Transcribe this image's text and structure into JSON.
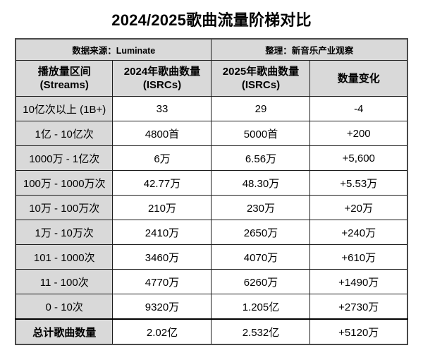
{
  "title": "2024/2025歌曲流量阶梯对比",
  "meta": {
    "source_label": "数据来源：Luminate",
    "compiler_label": "整理：新音乐产业观察"
  },
  "colors": {
    "header_bg": "#d9d9d9",
    "inner_border": "#1c1c1c",
    "outer_border": "#4a4a4a",
    "text": "#000000",
    "page_bg": "#ffffff"
  },
  "chart_data": {
    "type": "table",
    "title": "2024/2025歌曲流量阶梯对比",
    "columns": [
      "播放量区间\n(Streams)",
      "2024年歌曲数量\n(ISRCs)",
      "2025年歌曲数量\n(ISRCs)",
      "数量变化"
    ],
    "categories": [
      "10亿次以上 (1B+)",
      "1亿 - 10亿次",
      "1000万 - 1亿次",
      "100万 - 1000万次",
      "10万 - 100万次",
      "1万 - 10万次",
      "101 - 1000次",
      "11 - 100次",
      "0 - 10次",
      "总计歌曲数量"
    ],
    "series": [
      {
        "name": "2024年歌曲数量 (ISRCs)",
        "values": [
          "33",
          "4800首",
          "6万",
          "42.77万",
          "210万",
          "2410万",
          "3460万",
          "4770万",
          "9320万",
          "2.02亿"
        ]
      },
      {
        "name": "2025年歌曲数量 (ISRCs)",
        "values": [
          "29",
          "5000首",
          "6.56万",
          "48.30万",
          "230万",
          "2650万",
          "4070万",
          "6260万",
          "1.205亿",
          "2.532亿"
        ]
      },
      {
        "name": "数量变化",
        "values": [
          "-4",
          "+200",
          "+5,600",
          "+5.53万",
          "+20万",
          "+240万",
          "+610万",
          "+1490万",
          "+2730万",
          "+5120万"
        ]
      }
    ]
  }
}
